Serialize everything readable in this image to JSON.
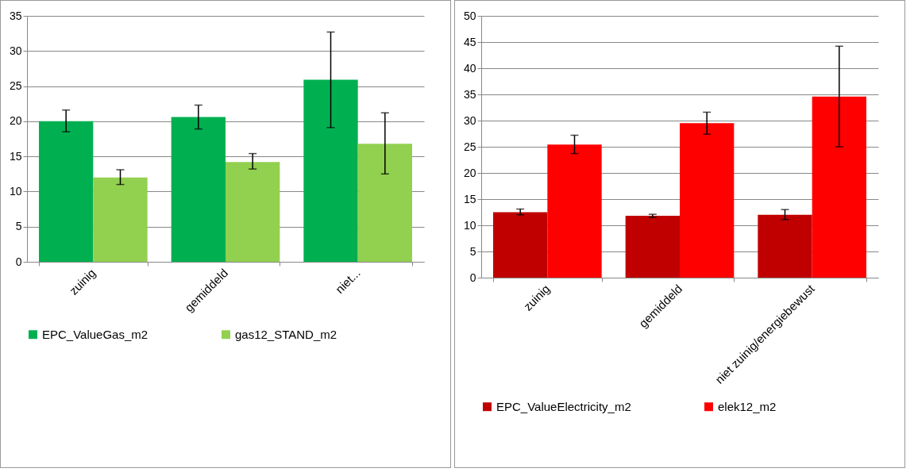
{
  "chart_data": [
    {
      "type": "bar",
      "categories": [
        "zuinig",
        "gemiddeld",
        "niet..."
      ],
      "ylim": [
        0,
        35
      ],
      "yticks": [
        0,
        5,
        10,
        15,
        20,
        25,
        30,
        35
      ],
      "grid": "y",
      "legend": "bottom",
      "series": [
        {
          "name": "EPC_ValueGas_m2",
          "color": "#00b050",
          "values": [
            20.0,
            20.6,
            25.9
          ],
          "errors": [
            [
              18.5,
              21.6
            ],
            [
              18.9,
              22.3
            ],
            [
              19.1,
              32.7
            ]
          ]
        },
        {
          "name": "gas12_STAND_m2",
          "color": "#92d050",
          "values": [
            12.0,
            14.2,
            16.8
          ],
          "errors": [
            [
              11.0,
              13.1
            ],
            [
              13.2,
              15.4
            ],
            [
              12.5,
              21.2
            ]
          ]
        }
      ]
    },
    {
      "type": "bar",
      "categories": [
        "zuinig",
        "gemiddeld",
        "niet zuinig/energiebewust"
      ],
      "ylim": [
        0,
        50
      ],
      "yticks": [
        0,
        5,
        10,
        15,
        20,
        25,
        30,
        35,
        40,
        45,
        50
      ],
      "grid": "y",
      "legend": "bottom",
      "series": [
        {
          "name": "EPC_ValueElectricity_m2",
          "color": "#c00000",
          "values": [
            12.5,
            11.8,
            12.0
          ],
          "errors": [
            [
              12.0,
              13.1
            ],
            [
              11.5,
              12.1
            ],
            [
              11.1,
              13.0
            ]
          ]
        },
        {
          "name": "elek12_m2",
          "color": "#ff0000",
          "values": [
            25.4,
            29.5,
            34.6
          ],
          "errors": [
            [
              23.7,
              27.2
            ],
            [
              27.4,
              31.6
            ],
            [
              25.0,
              44.2
            ]
          ]
        }
      ]
    }
  ]
}
